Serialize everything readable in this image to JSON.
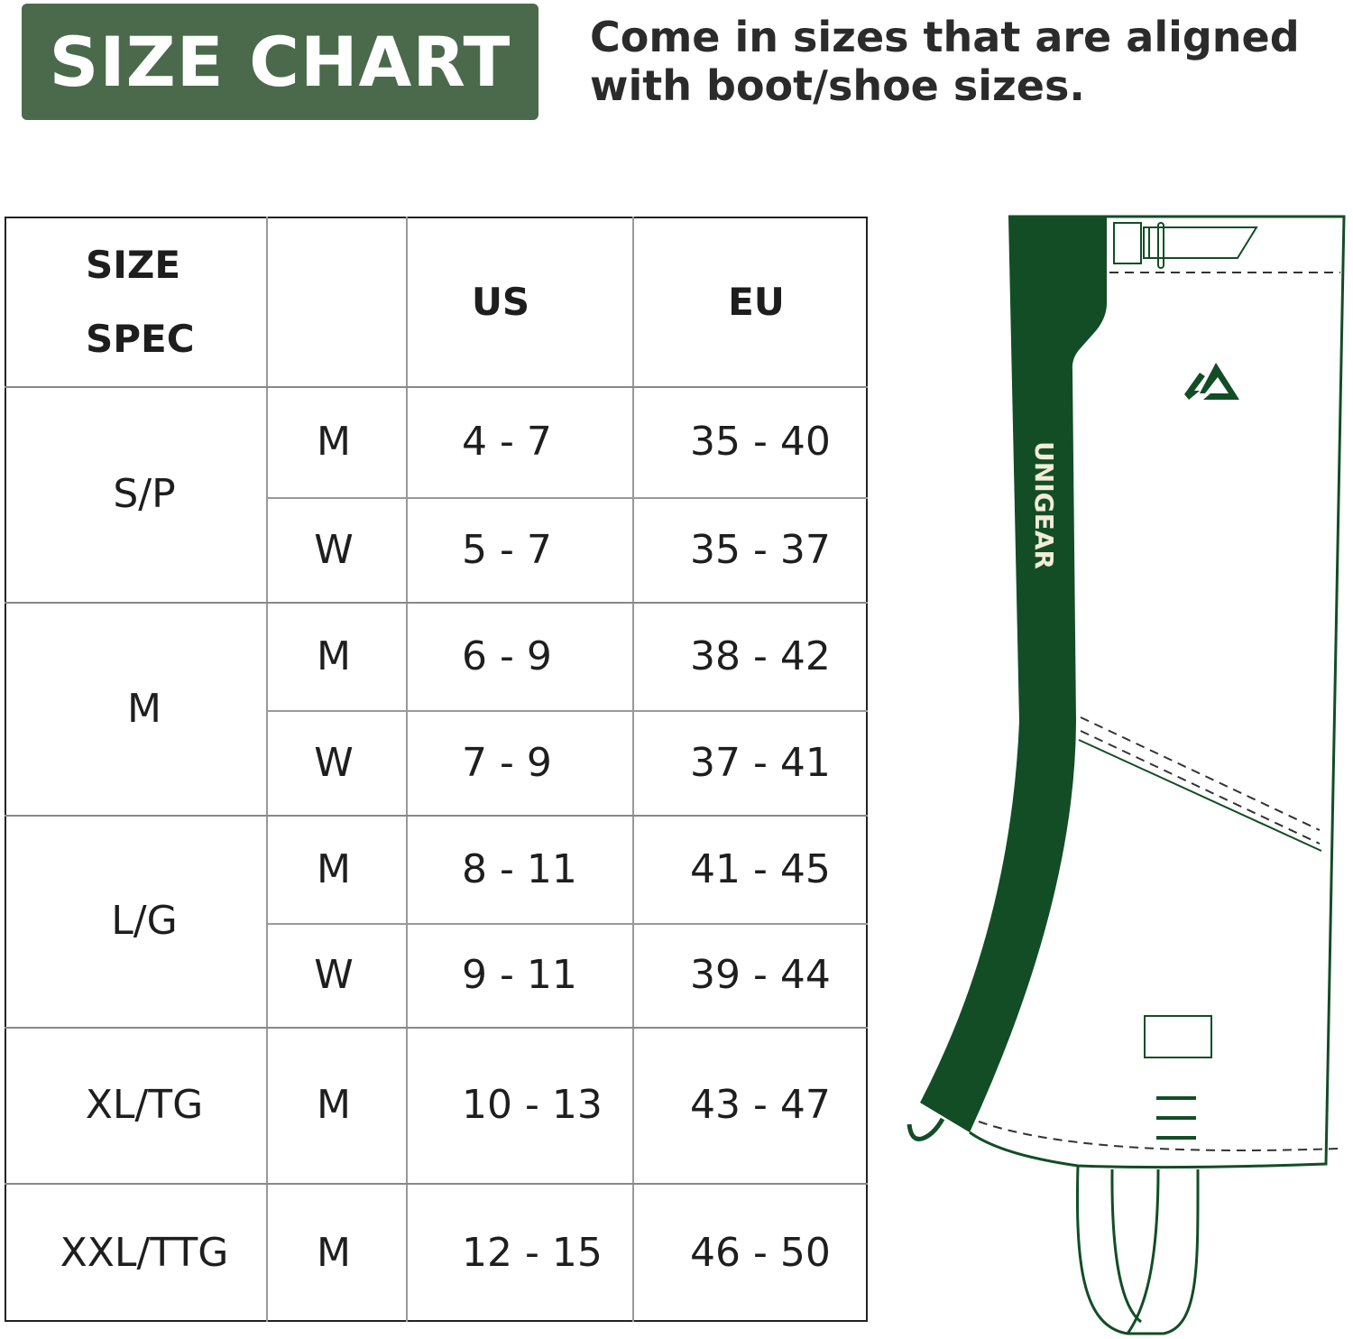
{
  "header": {
    "title": "SIZE CHART",
    "tagline_line1": "Come in sizes that are aligned",
    "tagline_line2": "with boot/shoe sizes.",
    "accent_color": "#4a6a4b"
  },
  "table": {
    "headers": {
      "size_line1": "SIZE",
      "size_line2": "SPEC",
      "gender": "",
      "us": "US",
      "eu": "EU"
    },
    "groups": [
      {
        "size": "S/P",
        "rows": [
          {
            "gender": "M",
            "us": "4 - 7",
            "eu": "35 - 40"
          },
          {
            "gender": "W",
            "us": "5 - 7",
            "eu": "35 - 37"
          }
        ]
      },
      {
        "size": "M",
        "rows": [
          {
            "gender": "M",
            "us": "6 - 9",
            "eu": "38 - 42"
          },
          {
            "gender": "W",
            "us": "7 - 9",
            "eu": "37 - 41"
          }
        ]
      },
      {
        "size": "L/G",
        "rows": [
          {
            "gender": "M",
            "us": "8 - 11",
            "eu": "41 - 45"
          },
          {
            "gender": "W",
            "us": "9 - 11",
            "eu": "39 - 44"
          }
        ]
      },
      {
        "size": "XL/TG",
        "rows": [
          {
            "gender": "M",
            "us": "10 - 13",
            "eu": "43 - 47"
          }
        ]
      },
      {
        "size": "XXL/TTG",
        "rows": [
          {
            "gender": "M",
            "us": "12 - 15",
            "eu": "46 - 50"
          }
        ]
      }
    ]
  },
  "illustration": {
    "brand_text": "UNIGEAR",
    "product_color": "#124d26"
  }
}
